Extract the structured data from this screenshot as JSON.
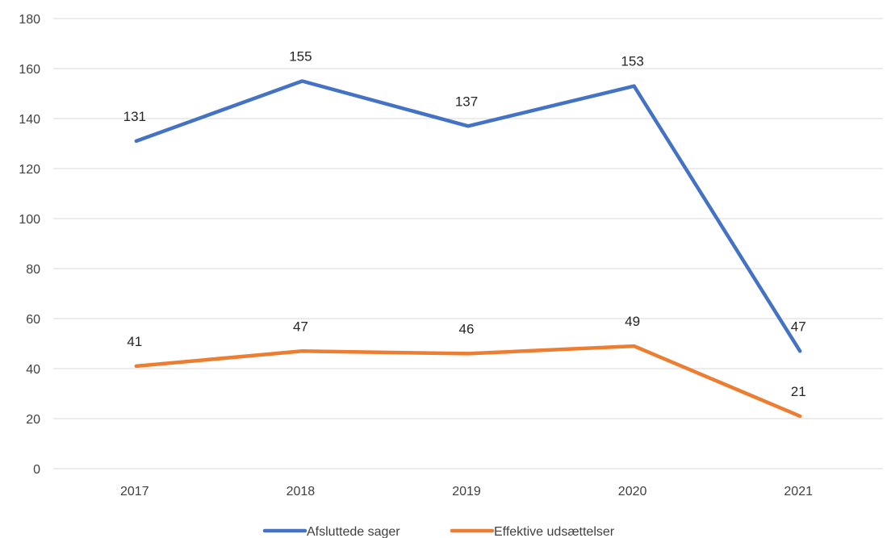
{
  "chart_data": {
    "type": "line",
    "categories": [
      "2017",
      "2018",
      "2019",
      "2020",
      "2021"
    ],
    "series": [
      {
        "name": "Afsluttede sager",
        "values": [
          131,
          155,
          137,
          153,
          47
        ],
        "color": "#4472C4"
      },
      {
        "name": "Effektive udsættelser",
        "values": [
          41,
          47,
          46,
          49,
          21
        ],
        "color": "#ED7D31"
      }
    ],
    "yticks": [
      "0",
      "20",
      "40",
      "60",
      "80",
      "100",
      "120",
      "140",
      "160",
      "180"
    ],
    "ylim": [
      0,
      180
    ],
    "grid": true,
    "legend": "bottom-center",
    "data_labels": true
  }
}
